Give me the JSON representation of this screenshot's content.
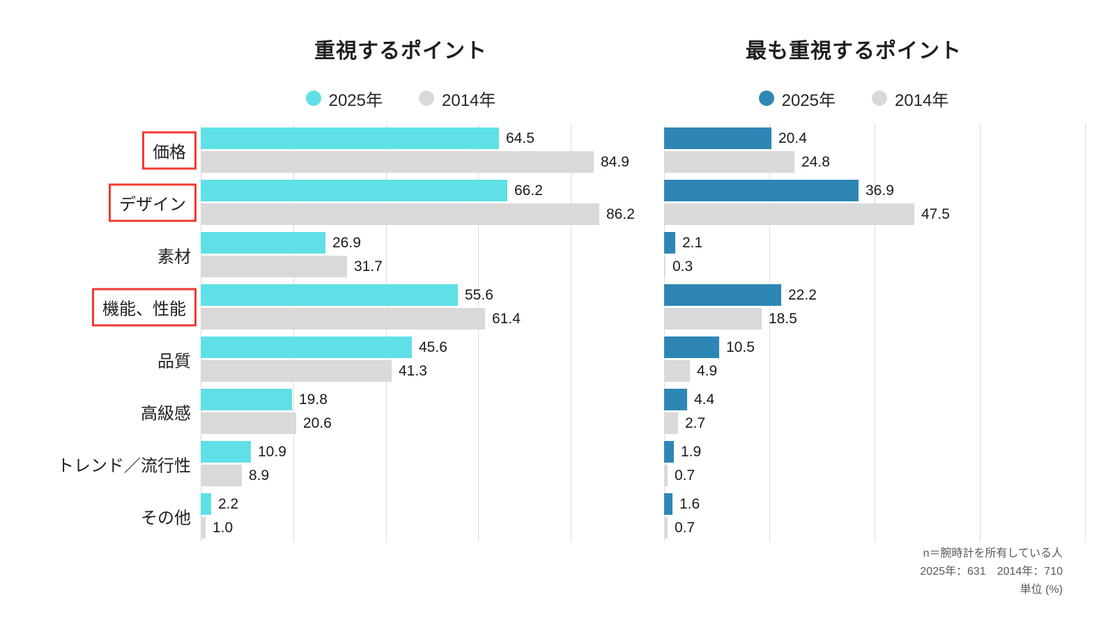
{
  "chart_data": [
    {
      "type": "bar",
      "orientation": "horizontal",
      "title": "重視するポイント",
      "categories": [
        "価格",
        "デザイン",
        "素材",
        "機能、性能",
        "品質",
        "高級感",
        "トレンド／流行性",
        "その他"
      ],
      "highlighted_category_indices": [
        0,
        1,
        3
      ],
      "series": [
        {
          "name": "2025年",
          "color": "#5FE0E6",
          "values": [
            64.5,
            66.2,
            26.9,
            55.6,
            45.6,
            19.8,
            10.9,
            2.2
          ]
        },
        {
          "name": "2014年",
          "color": "#D9D9D9",
          "values": [
            84.9,
            86.2,
            31.7,
            61.4,
            41.3,
            20.6,
            8.9,
            1.0
          ]
        }
      ],
      "xlim": [
        0,
        100
      ],
      "gridlines_pct": [
        0,
        20,
        40,
        60,
        80
      ],
      "grid": "vertical-lines",
      "legend_position": "top-center",
      "value_labels": "outside-end",
      "unit": "%"
    },
    {
      "type": "bar",
      "orientation": "horizontal",
      "title": "最も重視するポイント",
      "categories": [
        "価格",
        "デザイン",
        "素材",
        "機能、性能",
        "品質",
        "高級感",
        "トレンド／流行性",
        "その他"
      ],
      "highlighted_category_indices": [],
      "series": [
        {
          "name": "2025年",
          "color": "#2E86B5",
          "values": [
            20.4,
            36.9,
            2.1,
            22.2,
            10.5,
            4.4,
            1.9,
            1.6
          ]
        },
        {
          "name": "2014年",
          "color": "#D9D9D9",
          "values": [
            24.8,
            47.5,
            0.3,
            18.5,
            4.9,
            2.7,
            0.7,
            0.7
          ]
        }
      ],
      "xlim": [
        0,
        85
      ],
      "gridlines_pct": [
        0,
        20,
        40,
        60,
        80
      ],
      "grid": "vertical-lines",
      "legend_position": "top-center",
      "value_labels": "outside-end",
      "unit": "%"
    }
  ],
  "ui": {
    "highlight_box_color": "#F13A2F",
    "footnote": {
      "line1": "n＝腕時計を所有している人",
      "line2": "2025年：631　2014年：710",
      "line3": "単位 (%)"
    }
  }
}
